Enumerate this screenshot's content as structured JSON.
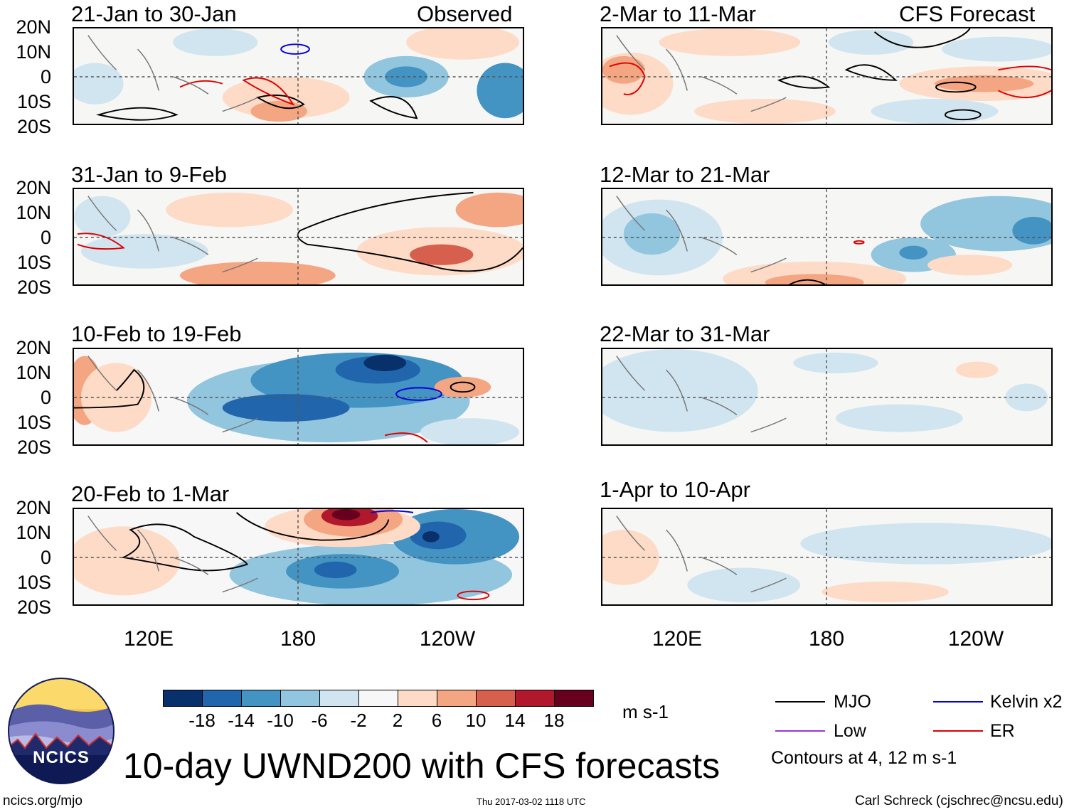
{
  "column_labels": {
    "observed": "Observed",
    "forecast": "CFS Forecast"
  },
  "panels": [
    {
      "id": "p1",
      "title": "21-Jan to 30-Jan"
    },
    {
      "id": "p2",
      "title": "31-Jan to 9-Feb"
    },
    {
      "id": "p3",
      "title": "10-Feb to 19-Feb"
    },
    {
      "id": "p4",
      "title": "20-Feb to 1-Mar"
    },
    {
      "id": "p5",
      "title": "2-Mar to 11-Mar"
    },
    {
      "id": "p6",
      "title": "12-Mar to 21-Mar"
    },
    {
      "id": "p7",
      "title": "22-Mar to 31-Mar"
    },
    {
      "id": "p8",
      "title": "1-Apr to 10-Apr"
    }
  ],
  "y_axis_labels": [
    "20N",
    "10N",
    "0",
    "10S",
    "20S"
  ],
  "x_axis_labels": [
    "120E",
    "180",
    "120W"
  ],
  "colorbar": {
    "ticks": [
      "-18",
      "-14",
      "-10",
      "-6",
      "-2",
      "2",
      "6",
      "10",
      "14",
      "18"
    ],
    "colors": [
      "#08306b",
      "#2166ac",
      "#4393c3",
      "#92c5de",
      "#d1e5f0",
      "#f7f7f7",
      "#fddbc7",
      "#f4a582",
      "#d6604d",
      "#b2182b",
      "#67001f"
    ],
    "units": "m s-1"
  },
  "legend": {
    "mjo": {
      "label": "MJO",
      "color": "#000000"
    },
    "kelvin": {
      "label": "Kelvin x2",
      "color": "#0000dd"
    },
    "low": {
      "label": "Low",
      "color": "#9933dd"
    },
    "er": {
      "label": "ER",
      "color": "#dd0000"
    },
    "contours_note": "Contours at 4, 12 m s-1"
  },
  "logo_text": "NCICS",
  "main_title": "10-day UWND200 with CFS forecasts",
  "footer": {
    "url": "ncics.org/mjo",
    "timestamp": "Thu 2017-03-02 1118 UTC",
    "author": "Carl Schreck (cjschrec@ncsu.edu)"
  }
}
